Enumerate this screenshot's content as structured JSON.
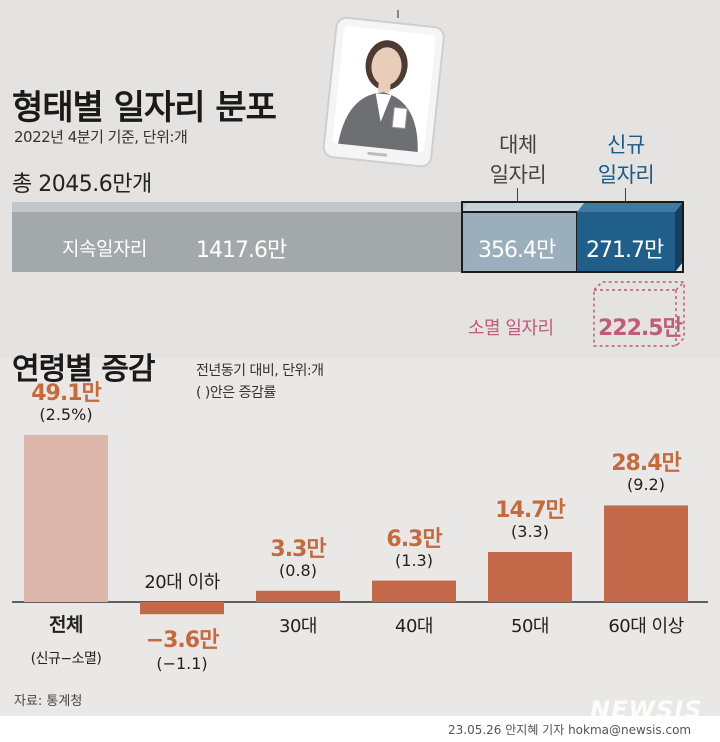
{
  "header": {
    "title": "형태별 일자리 분포",
    "basis": "2022년 4분기 기준, 단위:개",
    "total": "총 2045.6만개"
  },
  "distribution": {
    "sustained": {
      "label": "지속일자리",
      "value_text": "1417.6만",
      "value": 1417.6
    },
    "replaced": {
      "label_line1": "대체",
      "label_line2": "일자리",
      "value_text": "356.4만",
      "value": 356.4
    },
    "new": {
      "label_line1": "신규",
      "label_line2": "일자리",
      "value_text": "271.7만",
      "value": 271.7
    },
    "lost": {
      "label": "소멸 일자리",
      "value_text": "222.5만",
      "value": 222.5
    },
    "colors": {
      "sustained": "#a3a8ab",
      "replaced": "#9aaebb",
      "new": "#1f5f89",
      "lost": "#c05b78"
    }
  },
  "section2": {
    "title": "연령별 증감",
    "note_line1": "전년동기 대비, 단위:개",
    "note_line2": "( )안은 증감률"
  },
  "chart_data": {
    "type": "bar",
    "title": "연령별 증감",
    "categories": [
      "전체",
      "20대 이하",
      "30대",
      "40대",
      "50대",
      "60대 이상"
    ],
    "category_note": "(신규−소멸)",
    "values": [
      49.1,
      -3.6,
      3.3,
      6.3,
      14.7,
      28.4
    ],
    "value_labels": [
      "49.1만",
      "−3.6만",
      "3.3만",
      "6.3만",
      "14.7만",
      "28.4만"
    ],
    "rates": [
      2.5,
      -1.1,
      0.8,
      1.3,
      3.3,
      9.2
    ],
    "rate_labels": [
      "(2.5%)",
      "(−1.1)",
      "(0.8)",
      "(1.3)",
      "(3.3)",
      "(9.2)"
    ],
    "unit": "만 개",
    "colors": {
      "total": "#dcb5ab",
      "age": "#c4684a"
    }
  },
  "footer": {
    "source": "자료: 통계청",
    "credit": "23.05.26 안지혜 기자 hokma@newsis.com",
    "watermark": "NEWSIS"
  }
}
